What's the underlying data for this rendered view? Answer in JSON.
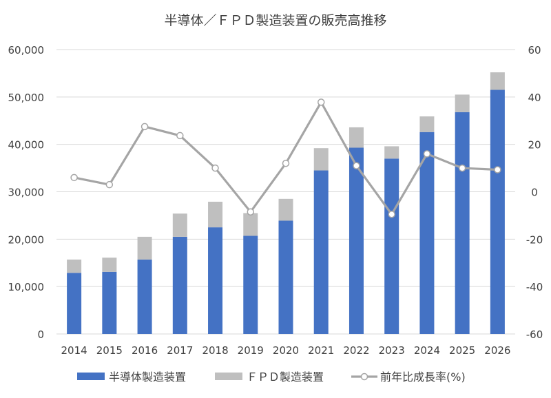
{
  "chart_data": {
    "type": "bar",
    "stacked": true,
    "title": "半導体／ＦＰＤ製造装置の販売高推移",
    "categories": [
      "2014",
      "2015",
      "2016",
      "2017",
      "2018",
      "2019",
      "2020",
      "2021",
      "2022",
      "2023",
      "2024",
      "2025",
      "2026"
    ],
    "series": [
      {
        "name": "半導体製造装置",
        "type": "bar",
        "axis": "left",
        "color": "#4472C4",
        "values": [
          12900,
          13100,
          15700,
          20500,
          22500,
          20700,
          23900,
          34500,
          39300,
          37000,
          42600,
          46800,
          51500
        ]
      },
      {
        "name": "ＦＰＤ製造装置",
        "type": "bar",
        "axis": "left",
        "color": "#BFBFBF",
        "values": [
          2800,
          3000,
          4800,
          4900,
          5400,
          4800,
          4600,
          4700,
          4300,
          2600,
          3300,
          3700,
          3700
        ]
      },
      {
        "name": "前年比成長率(%)",
        "type": "line",
        "axis": "right",
        "color": "#A5A5A5",
        "values": [
          6,
          3,
          27.5,
          23.7,
          10,
          -8.5,
          12,
          37.8,
          11,
          -9.5,
          16,
          10,
          9.3
        ]
      }
    ],
    "y_left": {
      "min": 0,
      "max": 60000,
      "ticks": [
        "0",
        "10,000",
        "20,000",
        "30,000",
        "40,000",
        "50,000",
        "60,000"
      ]
    },
    "y_right": {
      "min": -60,
      "max": 60,
      "ticks": [
        "-60",
        "-40",
        "-20",
        "0",
        "20",
        "40",
        "60"
      ]
    },
    "grid": true,
    "legend": "bottom"
  }
}
